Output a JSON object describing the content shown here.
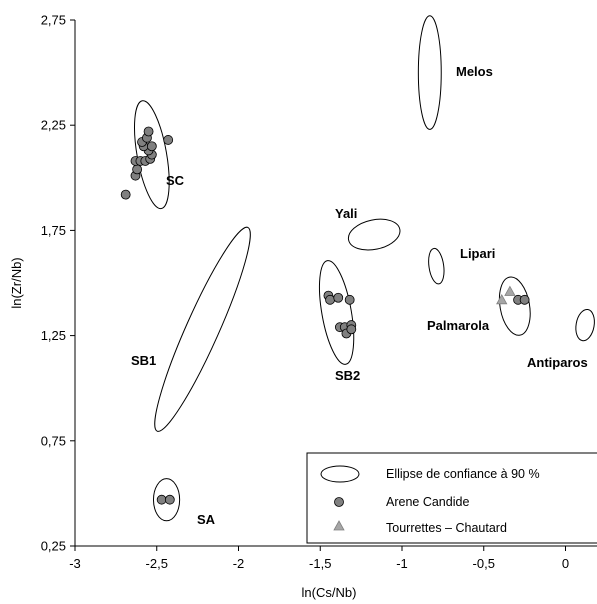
{
  "chart_data": {
    "type": "scatter",
    "title": "",
    "xlabel": "ln(Cs/Nb)",
    "ylabel": "ln(Zr/Nb)",
    "xlim": [
      -3,
      0.1
    ],
    "ylim": [
      0.25,
      2.75
    ],
    "x_ticks": [
      -3,
      -2.5,
      -2,
      -1.5,
      -1,
      -0.5,
      0
    ],
    "x_tick_labels": [
      "-3",
      "-2,5",
      "-2",
      "-1,5",
      "-1",
      "-0,5",
      "0"
    ],
    "y_ticks": [
      0.25,
      0.75,
      1.25,
      1.75,
      2.25,
      2.75
    ],
    "y_tick_labels": [
      "0,25",
      "0,75",
      "1,25",
      "1,75",
      "2,25",
      "2,75"
    ],
    "ellipses": [
      {
        "name": "Melos",
        "cx": -0.83,
        "cy": 2.5,
        "x_semi": 0.07,
        "y_semi": 0.27,
        "angle_deg": 0
      },
      {
        "name": "SC",
        "cx": -2.53,
        "cy": 2.11,
        "x_semi": 0.09,
        "y_semi": 0.26,
        "angle_deg": -10
      },
      {
        "name": "Yali",
        "cx": -1.17,
        "cy": 1.73,
        "x_semi": 0.16,
        "y_semi": 0.07,
        "angle_deg": -12
      },
      {
        "name": "Lipari",
        "cx": -0.79,
        "cy": 1.58,
        "x_semi": 0.045,
        "y_semi": 0.085,
        "angle_deg": -8
      },
      {
        "name": "Palmarola",
        "cx": -0.31,
        "cy": 1.39,
        "x_semi": 0.09,
        "y_semi": 0.14,
        "angle_deg": -10
      },
      {
        "name": "SB2",
        "cx": -1.4,
        "cy": 1.36,
        "x_semi": 0.09,
        "y_semi": 0.25,
        "angle_deg": -10
      },
      {
        "name": "Antiparos",
        "cx": 0.12,
        "cy": 1.3,
        "x_semi": 0.055,
        "y_semi": 0.075,
        "angle_deg": 10
      },
      {
        "name": "SB1",
        "cx": -2.22,
        "cy": 1.28,
        "x_semi": 0.1,
        "y_semi": 0.53,
        "angle_deg": 24
      },
      {
        "name": "SA",
        "cx": -2.44,
        "cy": 0.47,
        "x_semi": 0.08,
        "y_semi": 0.1,
        "angle_deg": 0
      }
    ],
    "series": [
      {
        "name": "Arene Candide",
        "marker": "circle",
        "color": "#808080",
        "points": [
          [
            -2.69,
            1.92
          ],
          [
            -2.63,
            2.01
          ],
          [
            -2.62,
            2.04
          ],
          [
            -2.63,
            2.08
          ],
          [
            -2.6,
            2.08
          ],
          [
            -2.57,
            2.08
          ],
          [
            -2.54,
            2.09
          ],
          [
            -2.53,
            2.11
          ],
          [
            -2.55,
            2.13
          ],
          [
            -2.58,
            2.15
          ],
          [
            -2.53,
            2.15
          ],
          [
            -2.59,
            2.17
          ],
          [
            -2.56,
            2.19
          ],
          [
            -2.55,
            2.22
          ],
          [
            -2.43,
            2.18
          ],
          [
            -2.47,
            0.47
          ],
          [
            -2.42,
            0.47
          ],
          [
            -1.45,
            1.44
          ],
          [
            -1.44,
            1.42
          ],
          [
            -1.39,
            1.43
          ],
          [
            -1.32,
            1.42
          ],
          [
            -1.38,
            1.29
          ],
          [
            -1.35,
            1.29
          ],
          [
            -1.31,
            1.3
          ],
          [
            -1.34,
            1.26
          ],
          [
            -1.31,
            1.28
          ],
          [
            -0.29,
            1.42
          ],
          [
            -0.25,
            1.42
          ]
        ]
      },
      {
        "name": "Tourrettes – Chautard",
        "marker": "triangle",
        "color": "#a6a6a6",
        "points": [
          [
            -0.39,
            1.42
          ],
          [
            -0.34,
            1.46
          ]
        ]
      }
    ],
    "legend": {
      "position": "bottom-right",
      "entries": [
        {
          "label": "Ellipse de confiance à 90 %",
          "symbol": "ellipse"
        },
        {
          "label": "Arene Candide",
          "symbol": "circle"
        },
        {
          "label": "Tourrettes – Chautard",
          "symbol": "triangle"
        }
      ]
    },
    "grid": false
  }
}
